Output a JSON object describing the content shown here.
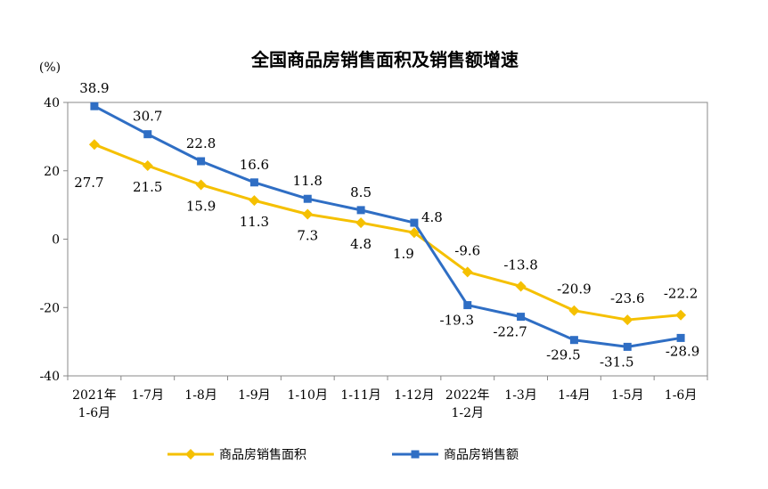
{
  "chart_data": {
    "type": "line",
    "title": "全国商品房销售面积及销售额增速",
    "unit_label": "(%)",
    "ylim": [
      -40,
      40
    ],
    "yticks": [
      40,
      20,
      0,
      -20,
      -40
    ],
    "categories": [
      [
        "2021年",
        "1-6月"
      ],
      [
        "1-7月"
      ],
      [
        "1-8月"
      ],
      [
        "1-9月"
      ],
      [
        "1-10月"
      ],
      [
        "1-11月"
      ],
      [
        "1-12月"
      ],
      [
        "2022年",
        "1-2月"
      ],
      [
        "1-3月"
      ],
      [
        "1-4月"
      ],
      [
        "1-5月"
      ],
      [
        "1-6月"
      ]
    ],
    "series": [
      {
        "name": "商品房销售面积",
        "color": "#F5C000",
        "marker": "diamond",
        "values": [
          27.7,
          21.5,
          15.9,
          11.3,
          7.3,
          4.8,
          1.9,
          -9.6,
          -13.8,
          -20.9,
          -23.6,
          -22.2
        ],
        "labels": [
          "27.7",
          "21.5",
          "15.9",
          "11.3",
          "7.3",
          "4.8",
          "1.9",
          "-9.6",
          "-13.8",
          "-20.9",
          "-23.6",
          "-22.2"
        ]
      },
      {
        "name": "商品房销售额",
        "color": "#2F6EC4",
        "marker": "square",
        "values": [
          38.9,
          30.7,
          22.8,
          16.6,
          11.8,
          8.5,
          4.8,
          -19.3,
          -22.7,
          -29.5,
          -31.5,
          -28.9
        ],
        "labels": [
          "38.9",
          "30.7",
          "22.8",
          "16.6",
          "11.8",
          "8.5",
          "4.8",
          "-19.3",
          "-22.7",
          "-29.5",
          "-31.5",
          "-28.9"
        ]
      }
    ],
    "grid": false,
    "legend_position": "bottom"
  }
}
